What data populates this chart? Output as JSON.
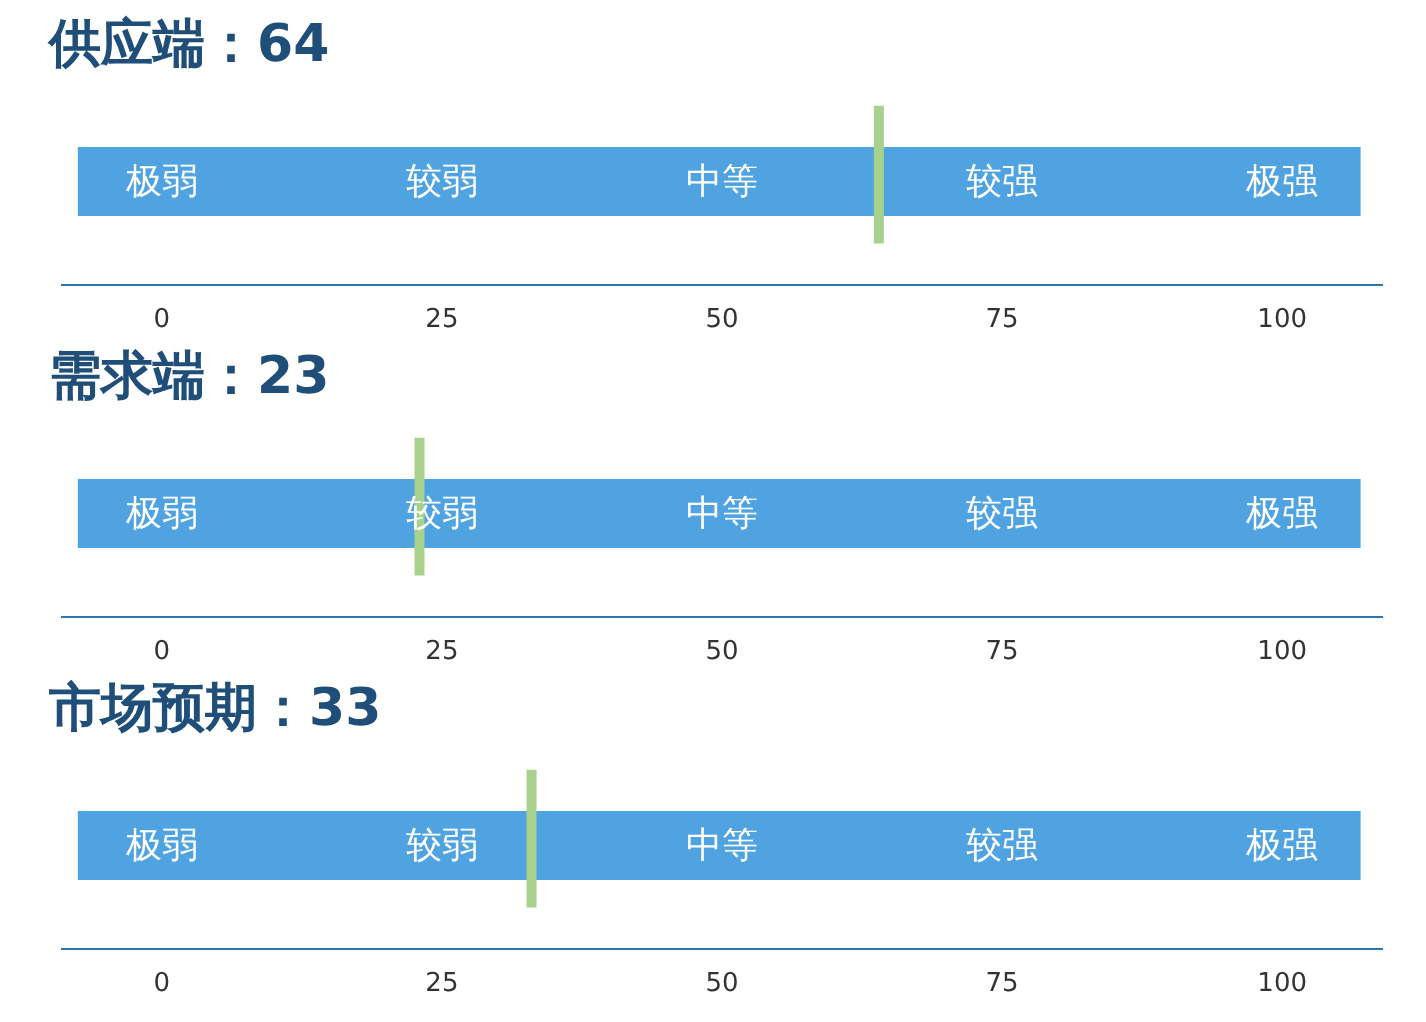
{
  "chart_data": [
    {
      "type": "bar",
      "orientation": "horizontal",
      "title": "供应端：64",
      "categories": [
        null
      ],
      "base": [
        -7.5
      ],
      "values": [
        114.5
      ],
      "color": "#4fa3e0",
      "xlim": [
        -9,
        109
      ],
      "xticks": [
        0,
        25,
        50,
        75,
        100
      ],
      "ref_lines": [
        {
          "axis": "x",
          "value": 64,
          "color": "#a9d18e"
        }
      ],
      "annotations": [
        "极弱",
        "较弱",
        "中等",
        "较强",
        "极强"
      ]
    },
    {
      "type": "bar",
      "orientation": "horizontal",
      "title": "需求端：23",
      "categories": [
        null
      ],
      "base": [
        -7.5
      ],
      "values": [
        114.5
      ],
      "color": "#4fa3e0",
      "xlim": [
        -9,
        109
      ],
      "xticks": [
        0,
        25,
        50,
        75,
        100
      ],
      "ref_lines": [
        {
          "axis": "x",
          "value": 23,
          "color": "#a9d18e"
        }
      ],
      "annotations": [
        "极弱",
        "较弱",
        "中等",
        "较强",
        "极强"
      ]
    },
    {
      "type": "bar",
      "orientation": "horizontal",
      "title": "市场预期：33",
      "categories": [
        null
      ],
      "base": [
        -7.5
      ],
      "values": [
        114.5
      ],
      "color": "#4fa3e0",
      "xlim": [
        -9,
        109
      ],
      "xticks": [
        0,
        25,
        50,
        75,
        100
      ],
      "ref_lines": [
        {
          "axis": "x",
          "value": 33,
          "color": "#a9d18e"
        }
      ],
      "annotations": [
        "极弱",
        "较弱",
        "中等",
        "较强",
        "极强"
      ]
    }
  ]
}
